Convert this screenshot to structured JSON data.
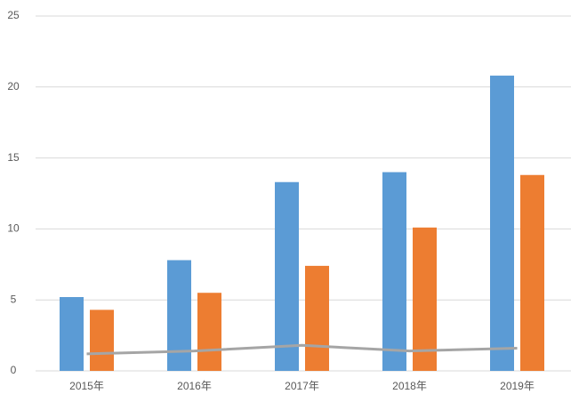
{
  "chart_data": {
    "type": "bar",
    "categories": [
      "2015年",
      "2016年",
      "2017年",
      "2018年",
      "2019年"
    ],
    "series": [
      {
        "type": "bar",
        "color": "#5b9bd5",
        "values": [
          5.2,
          7.8,
          13.3,
          14.0,
          20.8
        ]
      },
      {
        "type": "bar",
        "color": "#ed7d31",
        "values": [
          4.3,
          5.5,
          7.4,
          10.1,
          13.8
        ]
      },
      {
        "type": "line",
        "color": "#a5a5a5",
        "values": [
          1.2,
          1.4,
          1.8,
          1.4,
          1.6
        ]
      }
    ],
    "ylim": [
      0,
      25
    ],
    "yticks": [
      0,
      5,
      10,
      15,
      20,
      25
    ],
    "grid": true
  }
}
